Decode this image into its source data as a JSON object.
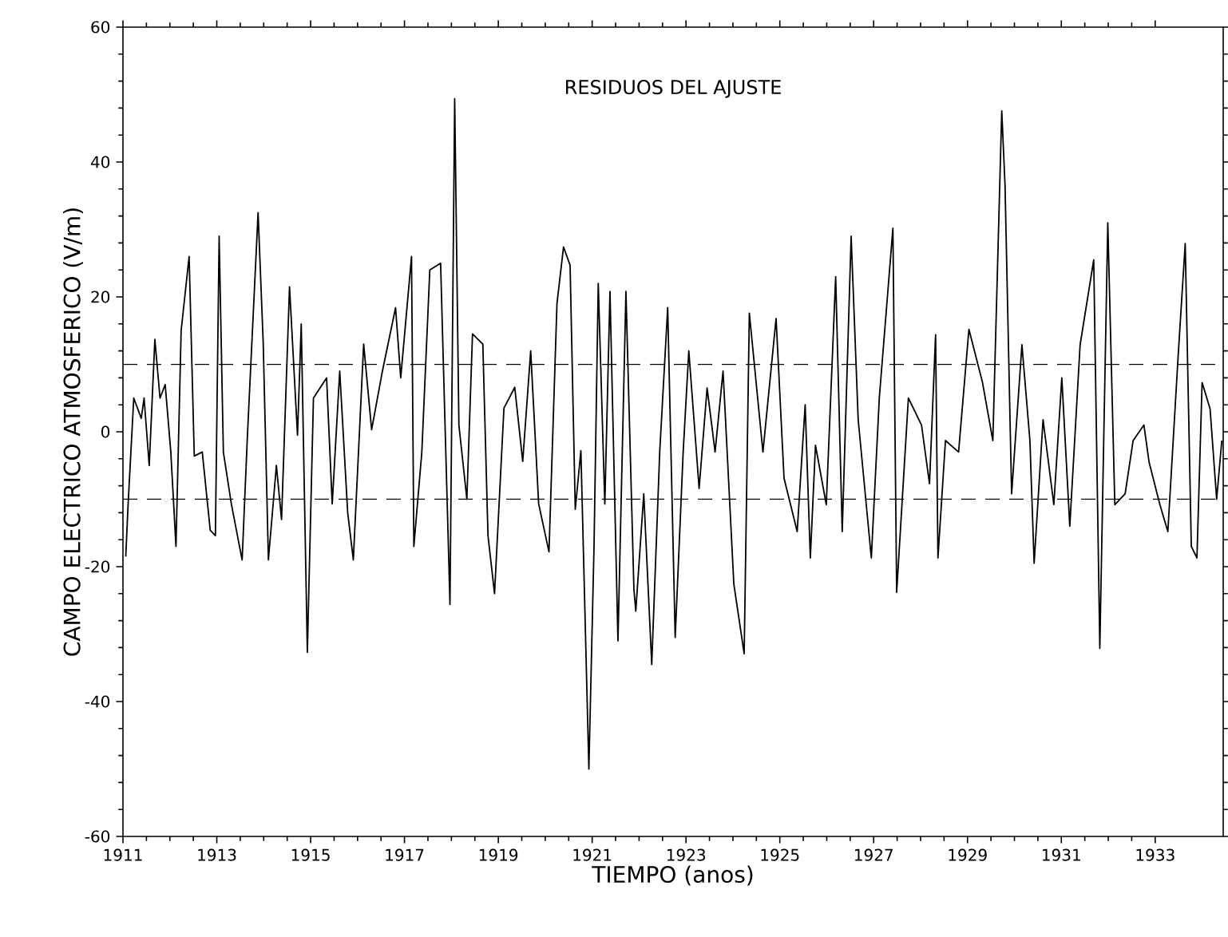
{
  "chart_data": {
    "type": "line",
    "title": "RESIDUOS DEL AJUSTE",
    "xlabel": "TIEMPO (anos)",
    "ylabel": "CAMPO ELECTRICO ATMOSFERICO (V/m)",
    "x": [
      1911.06,
      1911.11,
      1911.23,
      1911.39,
      1911.45,
      1911.56,
      1911.68,
      1911.79,
      1911.9,
      1912.02,
      1912.13,
      1912.24,
      1912.41,
      1912.52,
      1912.69,
      1912.86,
      1912.97,
      1913.05,
      1913.14,
      1913.31,
      1913.54,
      1913.65,
      1913.88,
      1913.99,
      1914.1,
      1914.27,
      1914.38,
      1914.55,
      1914.72,
      1914.8,
      1914.93,
      1915.06,
      1915.34,
      1915.46,
      1915.62,
      1915.79,
      1915.91,
      1916.13,
      1916.3,
      1916.53,
      1916.81,
      1916.92,
      1917.15,
      1917.2,
      1917.37,
      1917.54,
      1917.77,
      1917.97,
      1918.07,
      1918.16,
      1918.33,
      1918.45,
      1918.67,
      1918.78,
      1918.92,
      1919.12,
      1919.35,
      1919.52,
      1919.69,
      1919.86,
      1920.08,
      1920.25,
      1920.39,
      1920.53,
      1920.64,
      1920.76,
      1920.93,
      1921.04,
      1921.13,
      1921.27,
      1921.38,
      1921.55,
      1921.72,
      1921.89,
      1921.93,
      1922.1,
      1922.27,
      1922.44,
      1922.61,
      1922.77,
      1922.94,
      1923.06,
      1923.28,
      1923.45,
      1923.62,
      1923.79,
      1924.02,
      1924.24,
      1924.35,
      1924.64,
      1924.92,
      1925.09,
      1925.37,
      1925.54,
      1925.65,
      1925.76,
      1925.99,
      1926.19,
      1926.33,
      1926.52,
      1926.67,
      1926.95,
      1927.12,
      1927.41,
      1927.49,
      1927.74,
      1928.02,
      1928.19,
      1928.32,
      1928.37,
      1928.53,
      1928.81,
      1929.03,
      1929.32,
      1929.54,
      1929.73,
      1929.8,
      1929.94,
      1930.16,
      1930.33,
      1930.42,
      1930.61,
      1930.84,
      1931.01,
      1931.18,
      1931.4,
      1931.69,
      1931.82,
      1931.99,
      1932.14,
      1932.36,
      1932.53,
      1932.76,
      1932.87,
      1933.1,
      1933.27,
      1933.49,
      1933.64,
      1933.77,
      1933.89,
      1934.0,
      1934.17,
      1934.31,
      1934.42
    ],
    "series": [
      {
        "color": "#000000",
        "values": [
          -18.5,
          -10.7,
          5,
          2,
          5,
          -5,
          13.7,
          5,
          7,
          -3,
          -17,
          15,
          26,
          -3.6,
          -3,
          -14.6,
          -15.4,
          29,
          -3,
          -10.7,
          -19,
          -1,
          32.5,
          13,
          -19,
          -5,
          -13,
          21.5,
          -0.5,
          16,
          -32.7,
          5,
          8,
          -10.7,
          9,
          -12,
          -19,
          13,
          0.3,
          9,
          18.4,
          8,
          26,
          -17,
          -3,
          24,
          25,
          -25.6,
          49.4,
          1,
          -10,
          14.5,
          13,
          -15.4,
          -24,
          3.5,
          6.6,
          -4.4,
          12,
          -10.7,
          -17.8,
          19,
          27.4,
          24.7,
          -11.5,
          -2.8,
          -50,
          -17,
          22,
          -10.7,
          20.8,
          -31,
          20.8,
          -23.3,
          -26.6,
          -9.2,
          -34.5,
          -3,
          18.4,
          -30.5,
          -3,
          12,
          -8.4,
          6.5,
          -3,
          9,
          -22.6,
          -32.9,
          17.6,
          -3,
          16.8,
          -6.9,
          -14.8,
          4,
          -18.7,
          -2,
          -10.8,
          23,
          -14.8,
          29,
          1.8,
          -18.7,
          5,
          30.2,
          -23.8,
          5,
          1,
          -7.7,
          14.4,
          -18.7,
          -1.3,
          -3,
          15.2,
          7.3,
          -1.3,
          47.6,
          36.5,
          -9.2,
          12.9,
          -1.3,
          -19.5,
          1.8,
          -10.8,
          8,
          -14,
          12.9,
          25.5,
          -32.1,
          31,
          -10.8,
          -9.2,
          -1.3,
          1,
          -4.5,
          -10.8,
          -14.8,
          11.3,
          27.9,
          -17,
          -18.7,
          7.3,
          3.4,
          -10,
          -1.3
        ]
      }
    ],
    "xlim": [
      1911,
      1934.45
    ],
    "ylim": [
      -60,
      60
    ],
    "xticks": [
      1911,
      1913,
      1915,
      1917,
      1919,
      1921,
      1923,
      1925,
      1927,
      1929,
      1931,
      1933
    ],
    "yticks": [
      -60,
      -40,
      -20,
      0,
      20,
      40,
      60
    ],
    "ref_lines": [
      {
        "axis": "y",
        "value": 10,
        "line_style": "dashed"
      },
      {
        "axis": "y",
        "value": -10,
        "line_style": "dashed"
      }
    ],
    "grid": false,
    "marker": "none",
    "line_style": "solid"
  }
}
